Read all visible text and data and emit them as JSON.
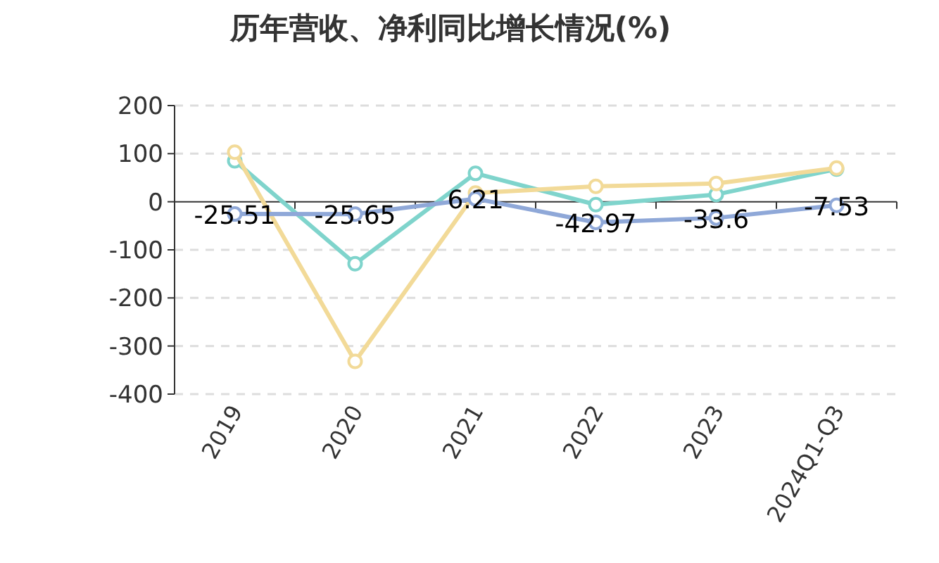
{
  "chart_data": {
    "type": "line",
    "title": "历年营收、净利同比增长情况(%)",
    "categories": [
      "2019",
      "2020",
      "2021",
      "2022",
      "2023",
      "2024Q1-Q3"
    ],
    "series": [
      {
        "color": "#8fa8d8",
        "values": [
          -25.51,
          -25.65,
          6.21,
          -42.97,
          -33.6,
          -7.53
        ],
        "data_labels": true
      },
      {
        "color": "#f2da98",
        "values": [
          103,
          -332,
          18,
          32,
          38,
          70
        ]
      },
      {
        "color": "#7fd4cc",
        "values": [
          85,
          -129,
          59,
          -6,
          15,
          68
        ]
      }
    ],
    "ylim": [
      -400,
      200
    ],
    "yticks": [
      -400,
      -300,
      -200,
      -100,
      0,
      100,
      200
    ],
    "grid": "y",
    "marker": "circle"
  }
}
